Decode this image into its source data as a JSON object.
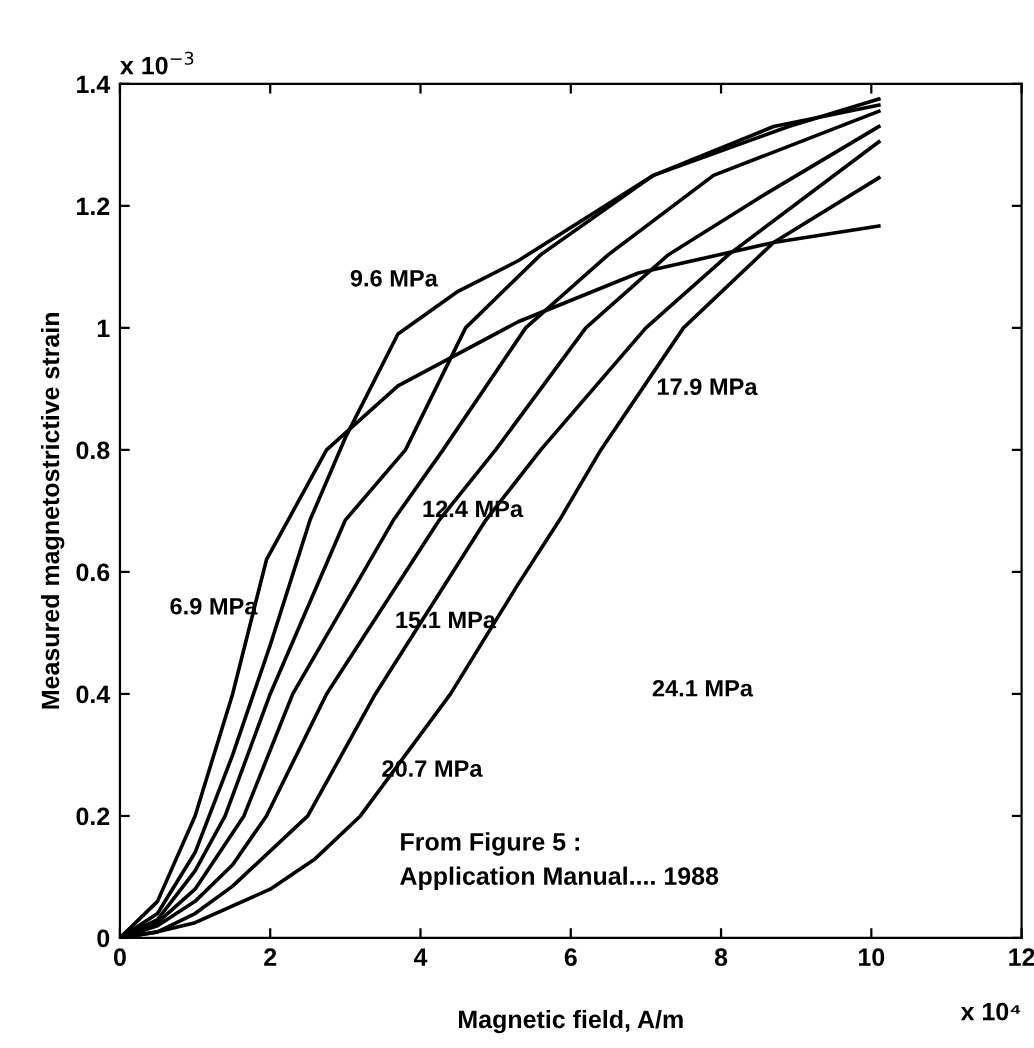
{
  "chart_data": {
    "type": "line",
    "xlabel": "Magnetic field, A/m",
    "ylabel": "Measured magnetostrictive strain",
    "xlim": [
      0,
      12
    ],
    "ylim": [
      0,
      1.4
    ],
    "xticks": [
      0,
      2,
      4,
      6,
      8,
      10,
      12
    ],
    "yticks": [
      0,
      0.2,
      0.4,
      0.6,
      0.8,
      1,
      1.2,
      1.4
    ],
    "grid": false,
    "legend": false,
    "marker": "none",
    "line_style": "solid",
    "series": [
      {
        "color": "#000000",
        "x": [
          0,
          0.5,
          1,
          1.5,
          1.95,
          2.75,
          3.7,
          5.3,
          6.9,
          8.7,
          10.1
        ],
        "values": [
          0,
          0.06,
          0.2,
          0.4,
          0.62,
          0.8,
          0.905,
          1.01,
          1.09,
          1.14,
          1.167
        ]
      },
      {
        "color": "#000000",
        "x": [
          0,
          0.5,
          1,
          1.5,
          2,
          2.53,
          3.0,
          3.7,
          4.5,
          5.3,
          7.1,
          8.9,
          10.1
        ],
        "values": [
          0,
          0.04,
          0.14,
          0.3,
          0.48,
          0.685,
          0.82,
          0.99,
          1.06,
          1.11,
          1.25,
          1.33,
          1.375
        ]
      },
      {
        "color": "#000000",
        "x": [
          0,
          0.5,
          1,
          1.4,
          2.0,
          3.0,
          3.8,
          4.6,
          5.6,
          7.1,
          8.7,
          10.1
        ],
        "values": [
          0,
          0.03,
          0.11,
          0.2,
          0.4,
          0.685,
          0.8,
          1.0,
          1.12,
          1.25,
          1.33,
          1.365
        ]
      },
      {
        "color": "#000000",
        "x": [
          0,
          0.5,
          1,
          1.65,
          2.3,
          3.64,
          4.3,
          5.4,
          6.5,
          7.9,
          10.1
        ],
        "values": [
          0,
          0.025,
          0.08,
          0.2,
          0.4,
          0.685,
          0.8,
          1.0,
          1.12,
          1.25,
          1.355
        ]
      },
      {
        "color": "#000000",
        "x": [
          0,
          0.5,
          1,
          1.5,
          1.95,
          2.75,
          4.25,
          5.0,
          6.2,
          7.3,
          8.6,
          10.1
        ],
        "values": [
          0,
          0.02,
          0.06,
          0.12,
          0.2,
          0.4,
          0.685,
          0.8,
          1.0,
          1.12,
          1.22,
          1.33
        ]
      },
      {
        "color": "#000000",
        "x": [
          0,
          0.5,
          1,
          1.5,
          2.5,
          3.4,
          4.87,
          5.6,
          7.0,
          8.1,
          10.1
        ],
        "values": [
          0,
          0.01,
          0.04,
          0.085,
          0.2,
          0.4,
          0.685,
          0.8,
          1.0,
          1.12,
          1.305
        ]
      },
      {
        "color": "#000000",
        "x": [
          0,
          0.5,
          1,
          2,
          2.6,
          3.2,
          4.4,
          5.3,
          5.85,
          6.4,
          7.5,
          8.7,
          10.1
        ],
        "values": [
          0,
          0.01,
          0.025,
          0.08,
          0.13,
          0.2,
          0.4,
          0.58,
          0.685,
          0.8,
          1.0,
          1.14,
          1.246
        ]
      }
    ],
    "annotations": [
      "9.6 MPa",
      "17.9 MPa",
      "12.4 MPa",
      "6.9 MPa",
      "15.1 MPa",
      "24.1 MPa",
      "20.7 MPa",
      "From Figure 5 :\nApplication Manual.... 1988",
      "x 10$^{−3}$",
      "x 10⁴"
    ]
  }
}
